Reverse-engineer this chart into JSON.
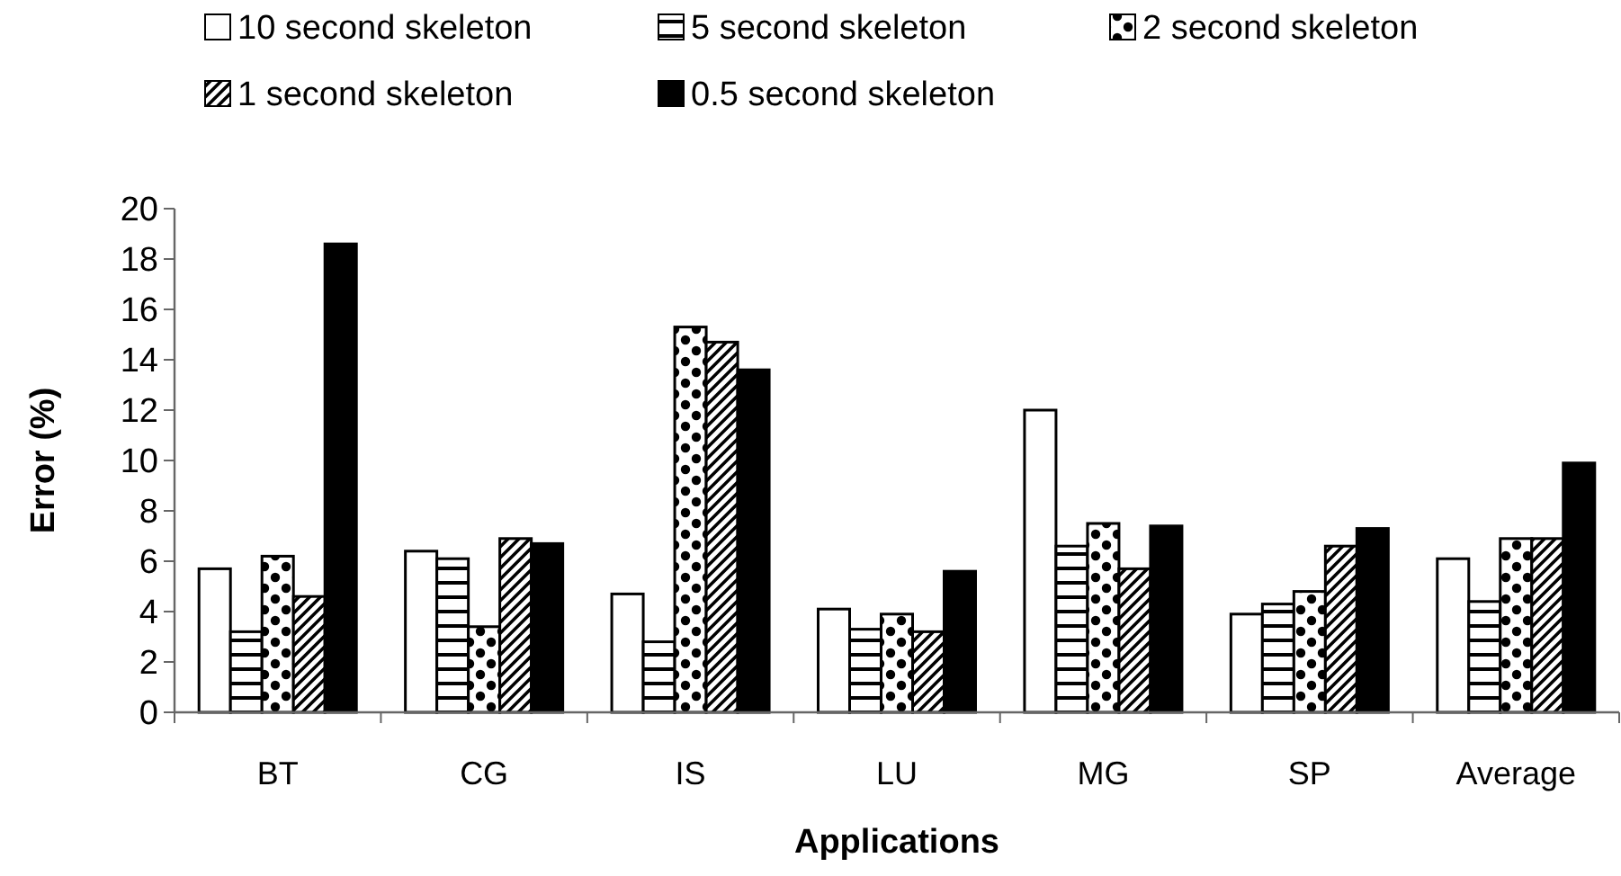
{
  "chart_data": {
    "type": "bar",
    "xlabel": "Applications",
    "ylabel": "Error (%)",
    "categories": [
      "BT",
      "CG",
      "IS",
      "LU",
      "MG",
      "SP",
      "Average"
    ],
    "series": [
      {
        "name": "10 second skeleton",
        "color": "#ffffff",
        "values": [
          5.7,
          6.4,
          4.7,
          4.1,
          12.0,
          3.9,
          6.1
        ]
      },
      {
        "name": "5 second skeleton",
        "color": "#000000",
        "values": [
          3.2,
          6.1,
          2.8,
          3.3,
          6.6,
          4.3,
          4.4
        ]
      },
      {
        "name": "2 second skeleton",
        "color": "#000000",
        "values": [
          6.2,
          3.4,
          15.3,
          3.9,
          7.5,
          4.8,
          6.9
        ]
      },
      {
        "name": "1 second skeleton",
        "color": "#000000",
        "values": [
          4.6,
          6.9,
          14.7,
          3.2,
          5.7,
          6.6,
          6.9
        ]
      },
      {
        "name": "0.5 second skeleton",
        "color": "#000000",
        "values": [
          18.6,
          6.7,
          13.6,
          5.6,
          7.4,
          7.3,
          9.9
        ]
      }
    ],
    "ylim": [
      0,
      20
    ],
    "yticks": [
      0,
      2,
      4,
      6,
      8,
      10,
      12,
      14,
      16,
      18,
      20
    ],
    "grid": false,
    "legend": "top"
  }
}
